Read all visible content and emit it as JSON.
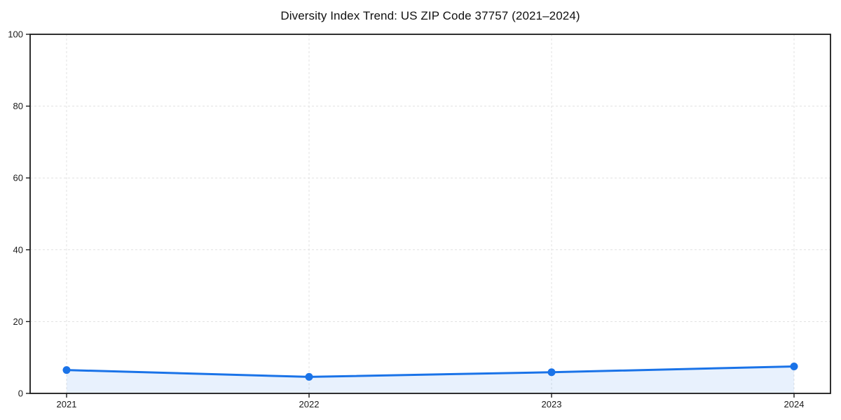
{
  "chart_data": {
    "type": "area",
    "title": "Diversity Index Trend: US ZIP Code 37757 (2021–2024)",
    "categories": [
      "2021",
      "2022",
      "2023",
      "2024"
    ],
    "series": [
      {
        "name": "Diversity Index",
        "values": [
          6.5,
          4.6,
          5.9,
          7.5
        ]
      }
    ],
    "xlabel": "",
    "ylabel": "",
    "ylim": [
      0,
      100
    ],
    "yticks": [
      0,
      20,
      40,
      60,
      80,
      100
    ],
    "grid": "dashed both axes",
    "legend_position": "none",
    "line_color": "#1a73e8",
    "marker_color": "#1a73e8",
    "fill_color": "rgba(26,115,232,0.10)",
    "gridline_color": "#e1e1e1",
    "spine_color": "#1a1a1a",
    "background_color": "#ffffff"
  }
}
